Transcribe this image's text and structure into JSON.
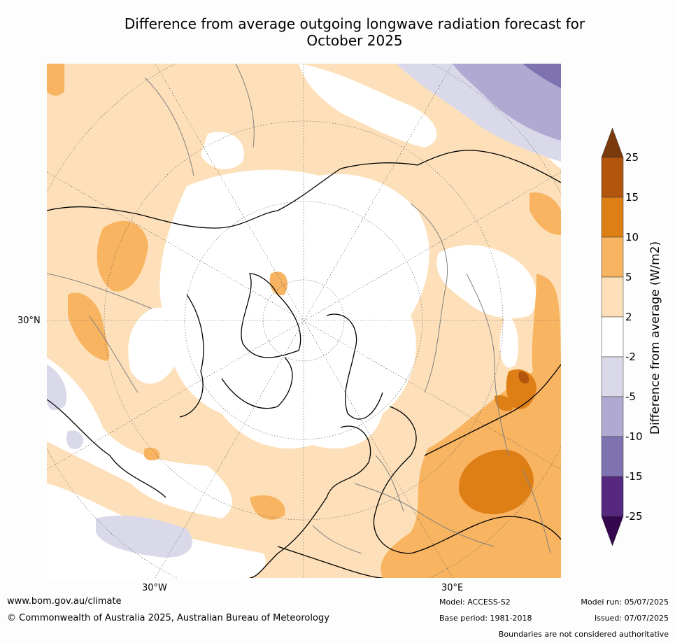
{
  "title_line1": "Difference from average outgoing longwave radiation forecast for",
  "title_line2": "October 2025",
  "map": {
    "lat_labels": [
      "30°N"
    ],
    "lon_labels": [
      "30°W",
      "30°E"
    ]
  },
  "legend": {
    "title": "Difference from average (W/m2)",
    "ticks": [
      "25",
      "15",
      "10",
      "5",
      "2",
      "-2",
      "-5",
      "-10",
      "-15",
      "-25"
    ],
    "colors": [
      "#7a3a0b",
      "#b2560d",
      "#de7f16",
      "#f8b461",
      "#fde0b9",
      "#ffffff",
      "#d9d9ea",
      "#b0a9d1",
      "#7f72b0",
      "#56287f",
      "#35074f"
    ]
  },
  "footer": {
    "url": "www.bom.gov.au/climate",
    "copyright": "© Commonwealth of Australia 2025, Australian Bureau of Meteorology",
    "model": "Model: ACCESS-S2",
    "base_period": "Base period: 1981-2018",
    "model_run": "Model run: 05/07/2025",
    "issued": "Issued: 07/07/2025",
    "disclaimer": "Boundaries are not considered authoritative"
  }
}
